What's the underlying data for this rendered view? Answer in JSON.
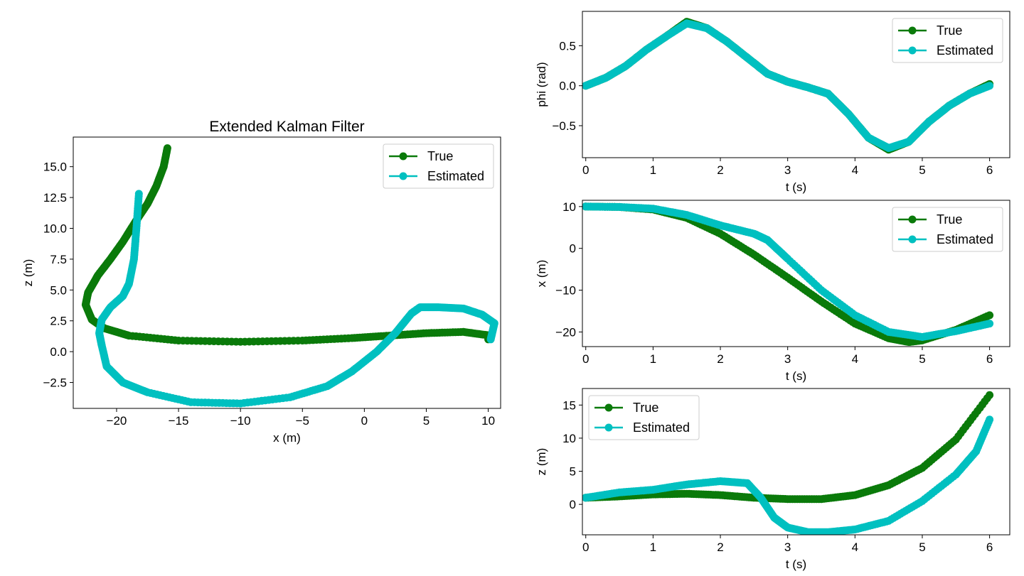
{
  "colors": {
    "true_series": "#0a7a0a",
    "estimated_series": "#00c0c0",
    "axes": "#000000"
  },
  "chart_data": [
    {
      "type": "scatter",
      "title": "Extended Kalman Filter",
      "xlabel": "x (m)",
      "ylabel": "z (m)",
      "xlim": [
        -23.5,
        11.0
      ],
      "ylim": [
        -4.6,
        17.4
      ],
      "xticks": [
        -20,
        -15,
        -10,
        -5,
        0,
        5,
        10
      ],
      "xtick_labels": [
        "−20",
        "−15",
        "−10",
        "−5",
        "0",
        "5",
        "10"
      ],
      "yticks": [
        -2.5,
        0.0,
        2.5,
        5.0,
        7.5,
        10.0,
        12.5,
        15.0
      ],
      "ytick_labels": [
        "−2.5",
        "0.0",
        "2.5",
        "5.0",
        "7.5",
        "10.0",
        "12.5",
        "15.0"
      ],
      "legend_position": "top-right",
      "grid": false,
      "series": [
        {
          "name": "True",
          "x": [
            10.0,
            10.2,
            8.0,
            5.0,
            2.0,
            -1.0,
            -5.0,
            -10.0,
            -15.0,
            -19.0,
            -21.0,
            -22.0,
            -22.5,
            -22.3,
            -21.5,
            -20.5,
            -19.5,
            -18.5,
            -17.5,
            -16.8,
            -16.2,
            -15.9
          ],
          "y": [
            1.0,
            1.3,
            1.6,
            1.5,
            1.3,
            1.1,
            0.9,
            0.8,
            0.9,
            1.3,
            1.9,
            2.6,
            3.8,
            4.8,
            6.2,
            7.5,
            8.9,
            10.5,
            12.0,
            13.4,
            15.0,
            16.5
          ]
        },
        {
          "name": "Estimated",
          "x": [
            10.2,
            10.5,
            9.5,
            8.0,
            6.0,
            4.5,
            3.8,
            2.5,
            1.0,
            -1.0,
            -3.0,
            -6.0,
            -10.0,
            -14.0,
            -17.5,
            -19.5,
            -20.8,
            -21.2,
            -21.4,
            -21.2,
            -20.5,
            -19.5,
            -19.0,
            -18.6,
            -18.4,
            -18.2
          ],
          "y": [
            1.0,
            2.3,
            3.0,
            3.5,
            3.6,
            3.6,
            3.1,
            1.5,
            0.0,
            -1.6,
            -2.8,
            -3.7,
            -4.2,
            -4.1,
            -3.3,
            -2.5,
            -1.2,
            0.5,
            1.5,
            2.6,
            3.6,
            4.5,
            5.5,
            7.5,
            10.0,
            12.8
          ]
        }
      ]
    },
    {
      "type": "scatter",
      "xlabel": "t (s)",
      "ylabel": "phi (rad)",
      "xlim": [
        -0.05,
        6.3
      ],
      "ylim": [
        -0.9,
        0.93
      ],
      "xticks": [
        0,
        1,
        2,
        3,
        4,
        5,
        6
      ],
      "xtick_labels": [
        "0",
        "1",
        "2",
        "3",
        "4",
        "5",
        "6"
      ],
      "yticks": [
        -0.5,
        0.0,
        0.5
      ],
      "ytick_labels": [
        "−0.5",
        "0.0",
        "0.5"
      ],
      "legend_position": "top-right",
      "grid": false,
      "series": [
        {
          "name": "True",
          "x": [
            0.0,
            0.3,
            0.6,
            0.9,
            1.2,
            1.5,
            1.8,
            2.1,
            2.4,
            2.7,
            3.0,
            3.3,
            3.6,
            3.9,
            4.2,
            4.5,
            4.8,
            5.1,
            5.4,
            5.7,
            6.0
          ],
          "y": [
            0.0,
            0.1,
            0.25,
            0.45,
            0.62,
            0.8,
            0.72,
            0.55,
            0.35,
            0.15,
            0.05,
            -0.02,
            -0.1,
            -0.35,
            -0.65,
            -0.8,
            -0.7,
            -0.45,
            -0.25,
            -0.1,
            0.02
          ]
        },
        {
          "name": "Estimated",
          "x": [
            0.0,
            0.3,
            0.6,
            0.9,
            1.2,
            1.5,
            1.8,
            2.1,
            2.4,
            2.7,
            3.0,
            3.3,
            3.6,
            3.9,
            4.2,
            4.5,
            4.8,
            5.1,
            5.4,
            5.7,
            6.0
          ],
          "y": [
            0.0,
            0.1,
            0.25,
            0.45,
            0.62,
            0.78,
            0.72,
            0.55,
            0.35,
            0.15,
            0.05,
            -0.02,
            -0.1,
            -0.35,
            -0.65,
            -0.78,
            -0.7,
            -0.45,
            -0.25,
            -0.1,
            0.0
          ]
        }
      ]
    },
    {
      "type": "scatter",
      "xlabel": "t (s)",
      "ylabel": "x (m)",
      "xlim": [
        -0.05,
        6.3
      ],
      "ylim": [
        -23.5,
        11.5
      ],
      "xticks": [
        0,
        1,
        2,
        3,
        4,
        5,
        6
      ],
      "xtick_labels": [
        "0",
        "1",
        "2",
        "3",
        "4",
        "5",
        "6"
      ],
      "yticks": [
        -20,
        -10,
        0,
        10
      ],
      "ytick_labels": [
        "−20",
        "−10",
        "0",
        "10"
      ],
      "legend_position": "top-right",
      "grid": false,
      "series": [
        {
          "name": "True",
          "x": [
            0.0,
            0.5,
            1.0,
            1.5,
            2.0,
            2.5,
            3.0,
            3.5,
            4.0,
            4.5,
            4.8,
            5.0,
            5.5,
            6.0
          ],
          "y": [
            10.0,
            9.9,
            9.3,
            7.3,
            3.5,
            -1.5,
            -7.0,
            -12.7,
            -18.0,
            -21.5,
            -22.4,
            -22.0,
            -19.5,
            -16.0
          ]
        },
        {
          "name": "Estimated",
          "x": [
            0.0,
            0.5,
            1.0,
            1.5,
            2.0,
            2.5,
            2.7,
            3.0,
            3.5,
            4.0,
            4.5,
            5.0,
            5.5,
            6.0
          ],
          "y": [
            10.0,
            9.9,
            9.5,
            8.0,
            5.5,
            3.5,
            2.0,
            -2.5,
            -10.0,
            -16.0,
            -20.0,
            -21.2,
            -19.8,
            -18.0
          ]
        }
      ]
    },
    {
      "type": "scatter",
      "xlabel": "t (s)",
      "ylabel": "z (m)",
      "xlim": [
        -0.05,
        6.3
      ],
      "ylim": [
        -4.6,
        17.5
      ],
      "xticks": [
        0,
        1,
        2,
        3,
        4,
        5,
        6
      ],
      "xtick_labels": [
        "0",
        "1",
        "2",
        "3",
        "4",
        "5",
        "6"
      ],
      "yticks": [
        0,
        5,
        10,
        15
      ],
      "ytick_labels": [
        "0",
        "5",
        "10",
        "15"
      ],
      "legend_position": "top-left",
      "grid": false,
      "series": [
        {
          "name": "True",
          "x": [
            0.0,
            0.5,
            1.0,
            1.5,
            2.0,
            2.5,
            3.0,
            3.5,
            4.0,
            4.5,
            5.0,
            5.5,
            6.0
          ],
          "y": [
            1.0,
            1.2,
            1.5,
            1.6,
            1.4,
            1.0,
            0.8,
            0.8,
            1.4,
            2.9,
            5.5,
            9.8,
            16.5
          ]
        },
        {
          "name": "Estimated",
          "x": [
            0.0,
            0.5,
            1.0,
            1.5,
            2.0,
            2.4,
            2.6,
            2.8,
            3.0,
            3.3,
            3.6,
            4.0,
            4.5,
            5.0,
            5.5,
            5.8,
            6.0
          ],
          "y": [
            1.0,
            1.8,
            2.2,
            3.0,
            3.5,
            3.2,
            1.0,
            -2.0,
            -3.5,
            -4.2,
            -4.2,
            -3.8,
            -2.5,
            0.5,
            4.5,
            8.0,
            12.8
          ]
        }
      ]
    }
  ]
}
